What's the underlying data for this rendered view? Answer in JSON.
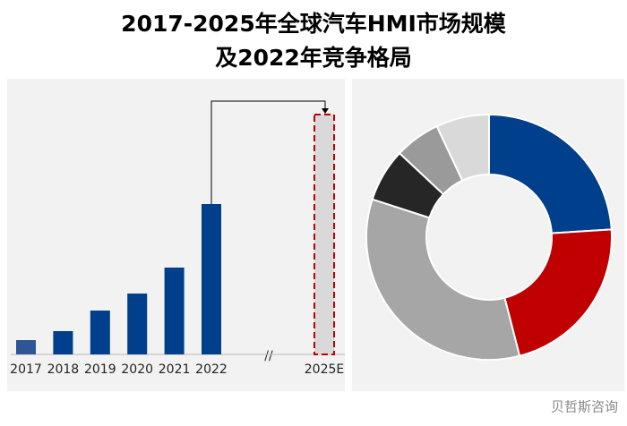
{
  "title": [
    "2017-2025年全球汽车HMI市场规模",
    "及2022年竞争格局"
  ],
  "watermark": "贝哲斯咨询",
  "chart_data": [
    {
      "type": "bar",
      "categories": [
        "2017",
        "2018",
        "2019",
        "2020",
        "2021",
        "2022",
        "2025E"
      ],
      "values": [
        16,
        26,
        49,
        68,
        97,
        168,
        268
      ],
      "colors": [
        "#2f5597",
        "#003f8c",
        "#003f8c",
        "#003f8c",
        "#003f8c",
        "#003f8c",
        "#d9d9d9"
      ],
      "edgecolors": [
        null,
        null,
        null,
        null,
        null,
        null,
        "#c00000"
      ],
      "ylim": [
        0,
        270
      ]
    },
    {
      "type": "pie",
      "values": [
        24,
        22,
        34,
        7,
        6,
        7
      ],
      "colors": [
        "#003f8c",
        "#c00000",
        "#a6a6a6",
        "#262626",
        "#9a9a9a",
        "#d9d9d9"
      ],
      "hole": true
    }
  ]
}
